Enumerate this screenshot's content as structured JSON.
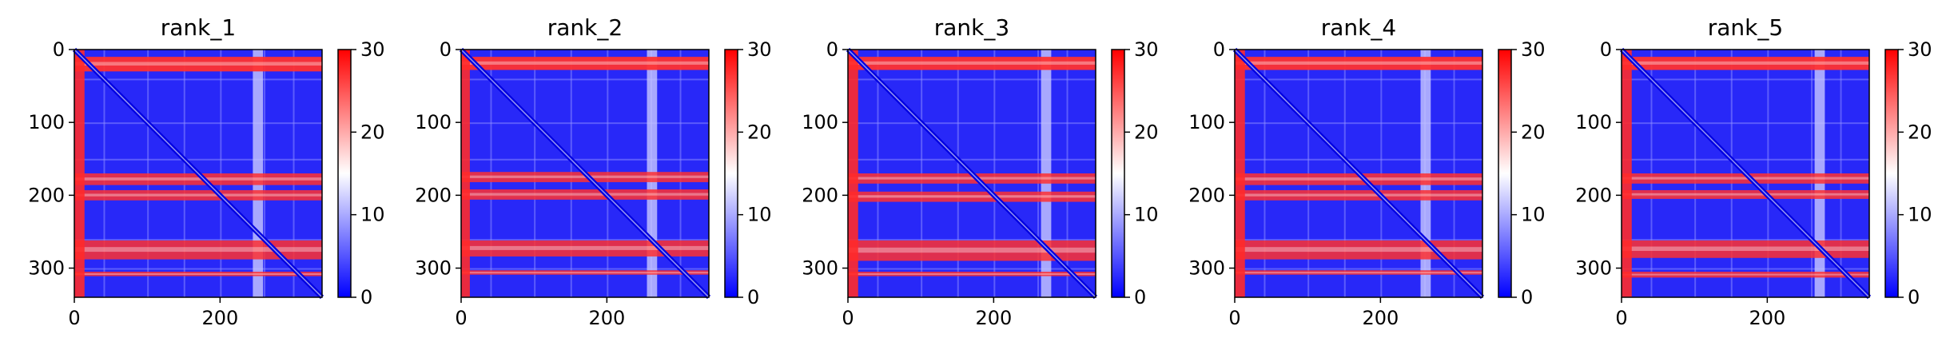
{
  "chart_data": [
    {
      "type": "heatmap",
      "title": "rank_1",
      "xticks": [
        "0",
        "200"
      ],
      "yticks": [
        "0",
        "100",
        "200",
        "300"
      ],
      "xlim": [
        0,
        340
      ],
      "ylim": [
        340,
        0
      ],
      "colorbar": {
        "ticks": [
          "0",
          "10",
          "20",
          "30"
        ],
        "range": [
          0,
          30
        ],
        "colors": [
          "#0000ff",
          "#ffffff",
          "#ff0000"
        ]
      },
      "bands": [
        {
          "row": 10,
          "h": 20
        },
        {
          "row": 170,
          "h": 16
        },
        {
          "row": 193,
          "h": 14
        },
        {
          "row": 262,
          "h": 26
        },
        {
          "row": 305,
          "h": 6
        }
      ],
      "left_band_width": 14,
      "shift_col": 220
    },
    {
      "type": "heatmap",
      "title": "rank_2",
      "xticks": [
        "0",
        "200"
      ],
      "yticks": [
        "0",
        "100",
        "200",
        "300"
      ],
      "xlim": [
        0,
        340
      ],
      "ylim": [
        340,
        0
      ],
      "colorbar": {
        "ticks": [
          "0",
          "10",
          "20",
          "30"
        ],
        "range": [
          0,
          30
        ],
        "colors": [
          "#0000ff",
          "#ffffff",
          "#ff0000"
        ]
      },
      "bands": [
        {
          "row": 10,
          "h": 18
        },
        {
          "row": 168,
          "h": 14
        },
        {
          "row": 192,
          "h": 14
        },
        {
          "row": 262,
          "h": 22
        },
        {
          "row": 303,
          "h": 6
        }
      ],
      "left_band_width": 12,
      "shift_col": 230
    },
    {
      "type": "heatmap",
      "title": "rank_3",
      "xticks": [
        "0",
        "200"
      ],
      "yticks": [
        "0",
        "100",
        "200",
        "300"
      ],
      "xlim": [
        0,
        340
      ],
      "ylim": [
        340,
        0
      ],
      "colorbar": {
        "ticks": [
          "0",
          "10",
          "20",
          "30"
        ],
        "range": [
          0,
          30
        ],
        "colors": [
          "#0000ff",
          "#ffffff",
          "#ff0000"
        ]
      },
      "bands": [
        {
          "row": 10,
          "h": 18
        },
        {
          "row": 170,
          "h": 14
        },
        {
          "row": 195,
          "h": 14
        },
        {
          "row": 262,
          "h": 28
        },
        {
          "row": 305,
          "h": 6
        }
      ],
      "left_band_width": 14,
      "shift_col": 240
    },
    {
      "type": "heatmap",
      "title": "rank_4",
      "xticks": [
        "0",
        "200"
      ],
      "yticks": [
        "0",
        "100",
        "200",
        "300"
      ],
      "xlim": [
        0,
        340
      ],
      "ylim": [
        340,
        0
      ],
      "colorbar": {
        "ticks": [
          "0",
          "10",
          "20",
          "30"
        ],
        "range": [
          0,
          30
        ],
        "colors": [
          "#0000ff",
          "#ffffff",
          "#ff0000"
        ]
      },
      "bands": [
        {
          "row": 10,
          "h": 18
        },
        {
          "row": 170,
          "h": 16
        },
        {
          "row": 193,
          "h": 14
        },
        {
          "row": 262,
          "h": 26
        },
        {
          "row": 303,
          "h": 6
        }
      ],
      "left_band_width": 14,
      "shift_col": 230
    },
    {
      "type": "heatmap",
      "title": "rank_5",
      "xticks": [
        "0",
        "200"
      ],
      "yticks": [
        "0",
        "100",
        "200",
        "300"
      ],
      "xlim": [
        0,
        340
      ],
      "ylim": [
        340,
        0
      ],
      "colorbar": {
        "ticks": [
          "0",
          "10",
          "20",
          "30"
        ],
        "range": [
          0,
          30
        ],
        "colors": [
          "#0000ff",
          "#ffffff",
          "#ff0000"
        ]
      },
      "bands": [
        {
          "row": 10,
          "h": 18
        },
        {
          "row": 170,
          "h": 14
        },
        {
          "row": 193,
          "h": 12
        },
        {
          "row": 262,
          "h": 24
        },
        {
          "row": 305,
          "h": 8
        }
      ],
      "left_band_width": 14,
      "shift_col": 240
    }
  ]
}
